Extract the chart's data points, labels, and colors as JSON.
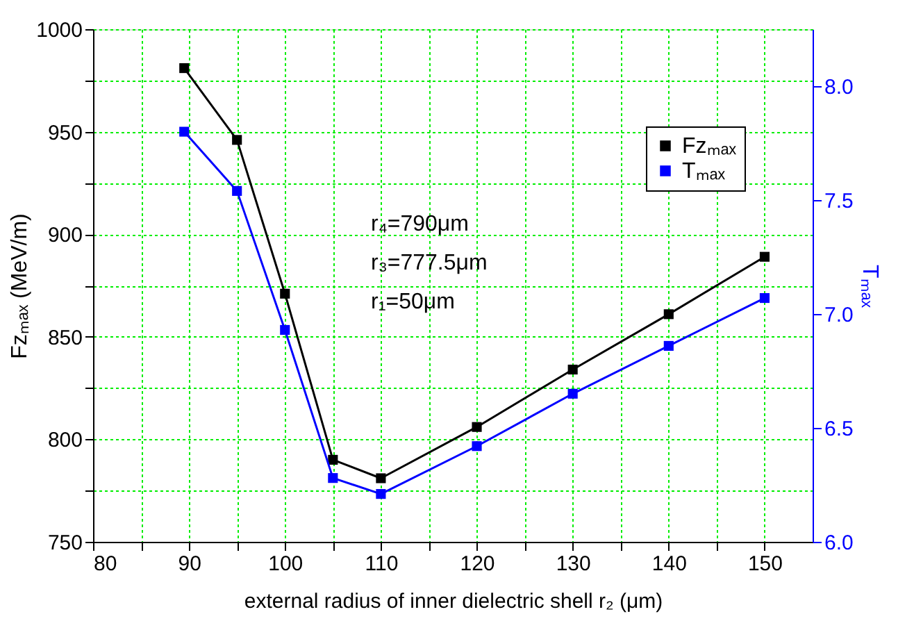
{
  "chart_data": {
    "type": "line",
    "xlabel": "external radius of inner dielectric shell r₂ (μm)",
    "ylabel": "Fzₘₐₓ (MeV/m)",
    "y2label": "Tₘₐₓ",
    "x": [
      89.5,
      95,
      100,
      105,
      110,
      120,
      130,
      140,
      150
    ],
    "series": [
      {
        "name": "Fzₘₐₓ",
        "color": "#000000",
        "values": [
          981,
          946,
          871,
          790,
          781,
          806,
          834,
          861,
          889
        ]
      },
      {
        "name": "Tₘₐₓ",
        "color": "#0000ff",
        "axis": "y2",
        "values": [
          7.8,
          7.54,
          6.93,
          6.28,
          6.21,
          6.42,
          6.65,
          6.86,
          7.07
        ]
      }
    ],
    "xlim": [
      80,
      155
    ],
    "xticks": [
      80,
      {
        "value": 85,
        "label": null
      },
      90,
      {
        "value": 95,
        "label": null
      },
      100,
      {
        "value": 105,
        "label": null
      },
      110,
      {
        "value": 115,
        "label": null
      },
      120,
      {
        "value": 125,
        "label": null
      },
      130,
      {
        "value": 135,
        "label": null
      },
      140,
      {
        "value": 145,
        "label": null
      },
      150
    ],
    "ylim": [
      750,
      1000
    ],
    "yticks": [
      750,
      {
        "value": 775,
        "label": null
      },
      800,
      {
        "value": 825,
        "label": null
      },
      850,
      {
        "value": 875,
        "label": null
      },
      900,
      {
        "value": 925,
        "label": null
      },
      950,
      {
        "value": 975,
        "label": null
      },
      1000
    ],
    "y2lim": [
      6.0,
      8.25
    ],
    "y2ticks": [
      {
        "value": 6.0,
        "label": "6.0"
      },
      6.5,
      {
        "value": 7.0,
        "label": "7.0"
      },
      7.5,
      {
        "value": 8.0,
        "label": "8.0"
      }
    ],
    "annotations": [
      "r₄=790μm",
      "r₃=777.5μm",
      "r₁=50μm"
    ],
    "grid": true,
    "legend": "top right",
    "marker": "square",
    "line_style": "solid"
  }
}
